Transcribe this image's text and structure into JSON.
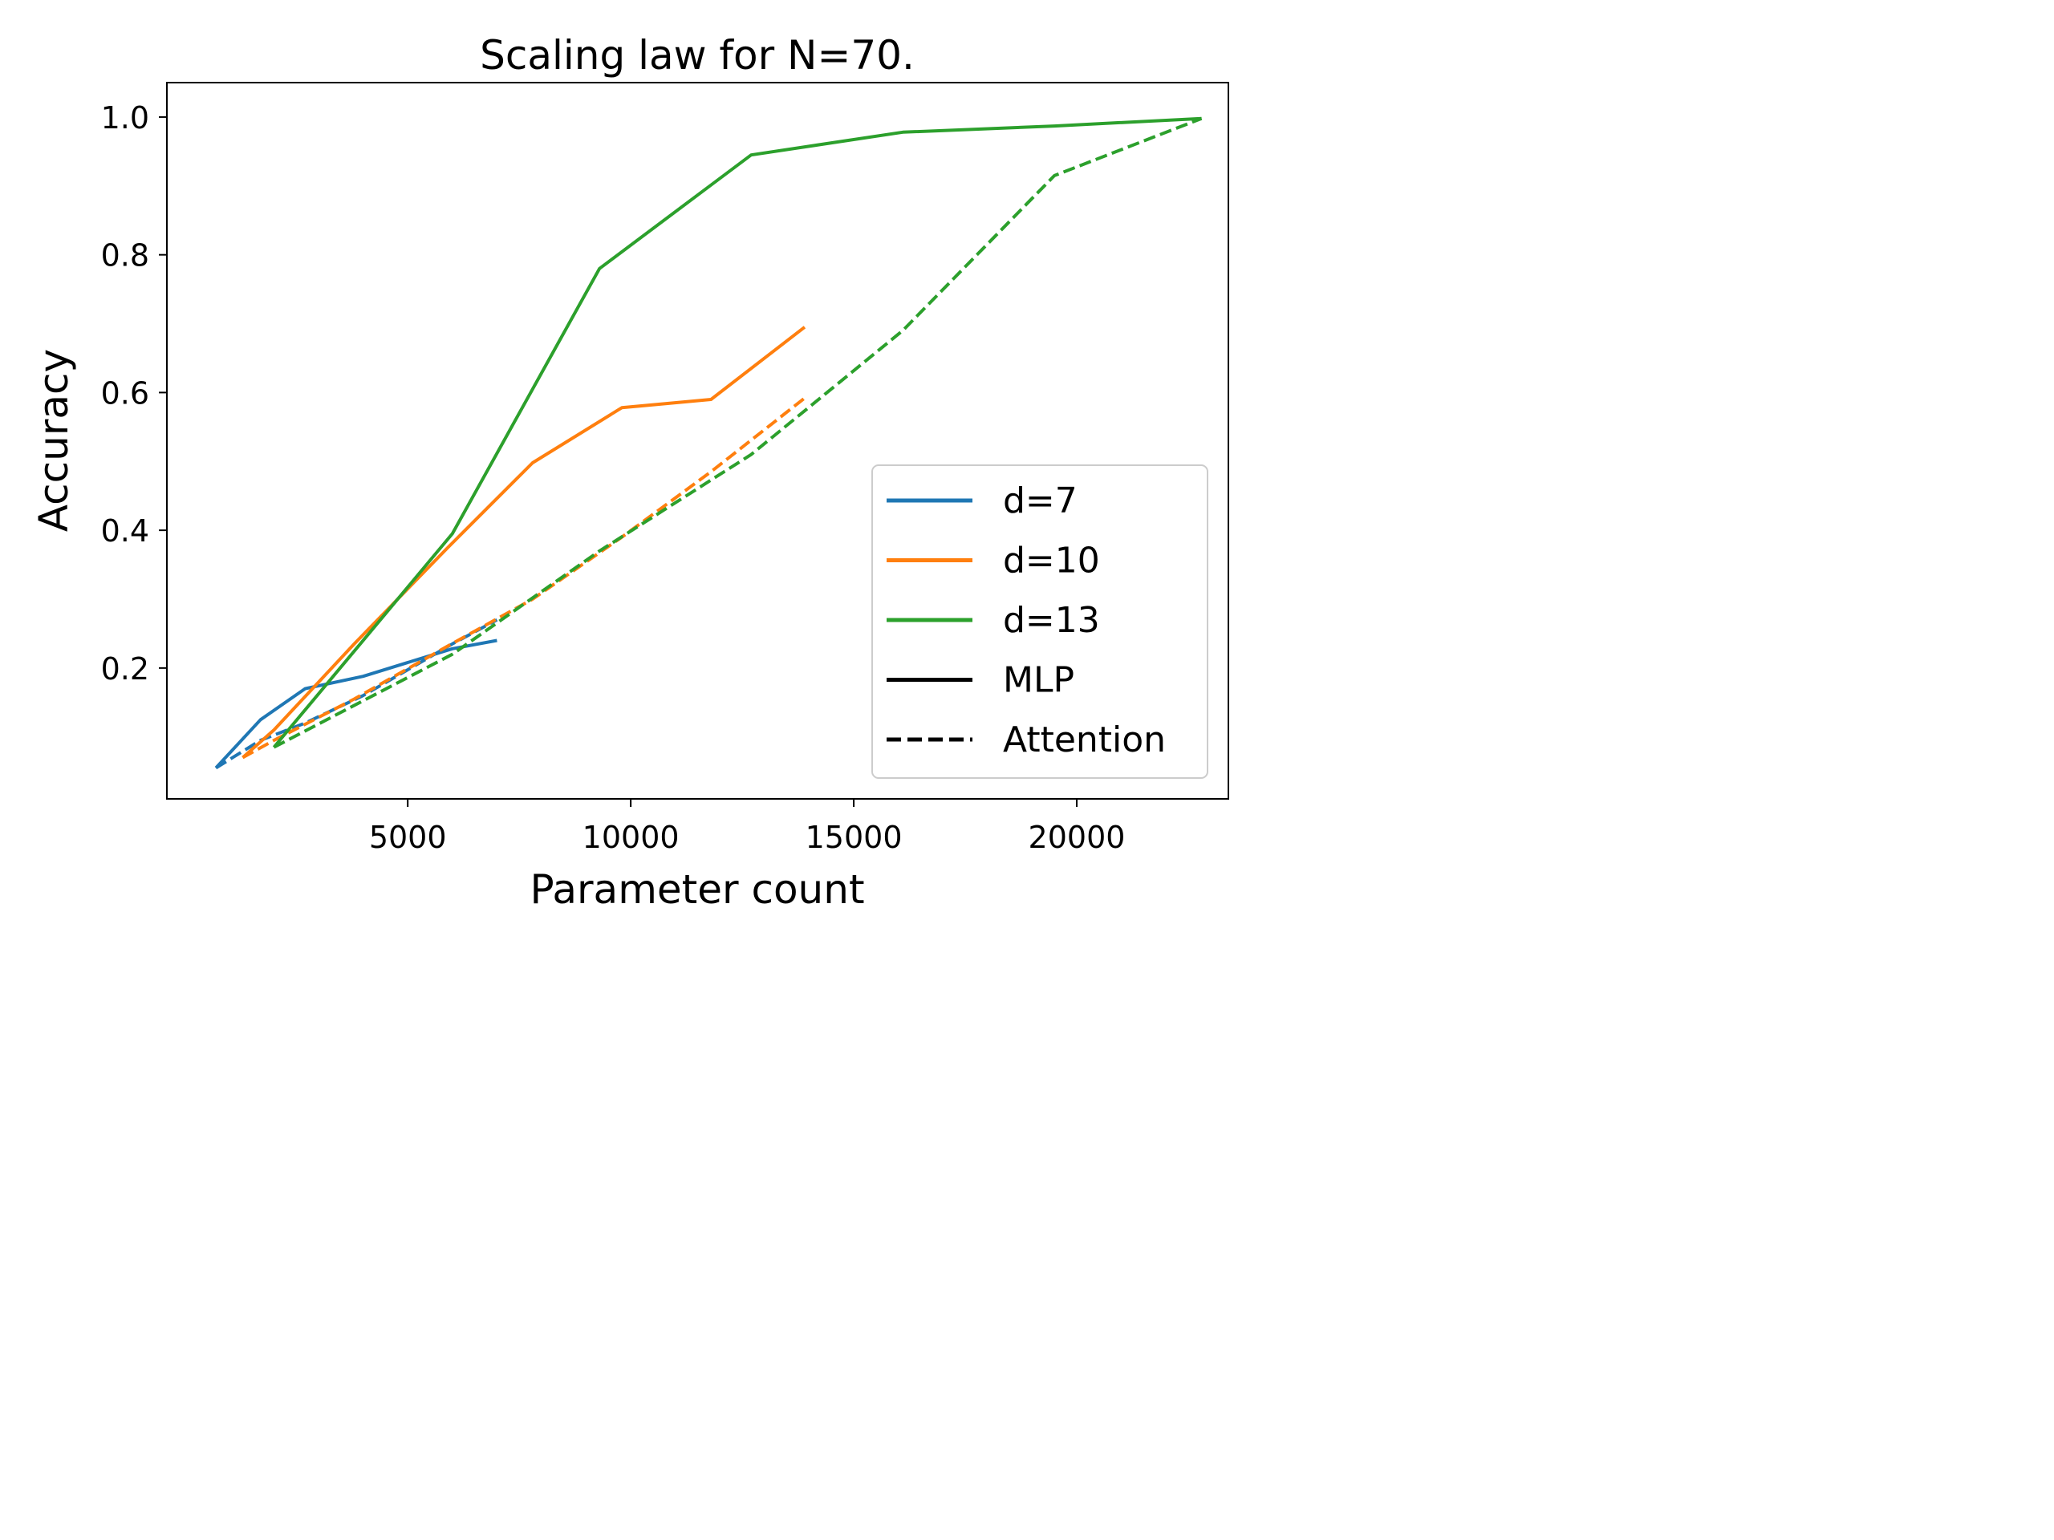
{
  "chart_data": {
    "type": "line",
    "title": "Scaling law for N=70.",
    "xlabel": "Parameter count",
    "ylabel": "Accuracy",
    "xlim": [
      -400,
      23400
    ],
    "ylim": [
      0.01,
      1.05
    ],
    "xticks": [
      5000,
      10000,
      15000,
      20000
    ],
    "yticks": [
      0.2,
      0.4,
      0.6,
      0.8,
      1.0
    ],
    "xtick_labels": [
      "5000",
      "10000",
      "15000",
      "20000"
    ],
    "ytick_labels": [
      "0.2",
      "0.4",
      "0.6",
      "0.8",
      "1.0"
    ],
    "grid": false,
    "legend_position": "lower-right",
    "legend": [
      {
        "label": "d=7",
        "color": "#1f77b4",
        "dash": "solid"
      },
      {
        "label": "d=10",
        "color": "#ff7f0e",
        "dash": "solid"
      },
      {
        "label": "d=13",
        "color": "#2ca02c",
        "dash": "solid"
      },
      {
        "label": "MLP",
        "color": "#000000",
        "dash": "solid"
      },
      {
        "label": "Attention",
        "color": "#000000",
        "dash": "dashed"
      }
    ],
    "series": [
      {
        "d": "d=7",
        "kind": "MLP",
        "color": "#1f77b4",
        "dash": "solid",
        "x": [
          700,
          1700,
          2700,
          4000,
          6000,
          7000
        ],
        "y": [
          0.055,
          0.125,
          0.17,
          0.188,
          0.228,
          0.24
        ]
      },
      {
        "d": "d=7",
        "kind": "Attention",
        "color": "#1f77b4",
        "dash": "dashed",
        "x": [
          700,
          1700,
          2700,
          4000,
          6000,
          7000
        ],
        "y": [
          0.055,
          0.095,
          0.12,
          0.16,
          0.235,
          0.27
        ]
      },
      {
        "d": "d=10",
        "kind": "MLP",
        "color": "#ff7f0e",
        "dash": "solid",
        "x": [
          1300,
          2000,
          3800,
          5900,
          7800,
          9800,
          11800,
          13900
        ],
        "y": [
          0.07,
          0.11,
          0.235,
          0.375,
          0.498,
          0.578,
          0.59,
          0.695
        ]
      },
      {
        "d": "d=10",
        "kind": "Attention",
        "color": "#ff7f0e",
        "dash": "dashed",
        "x": [
          1300,
          2000,
          3800,
          5900,
          7800,
          9800,
          11800,
          13900
        ],
        "y": [
          0.07,
          0.095,
          0.155,
          0.232,
          0.3,
          0.39,
          0.485,
          0.592
        ]
      },
      {
        "d": "d=13",
        "kind": "MLP",
        "color": "#2ca02c",
        "dash": "solid",
        "x": [
          2000,
          6000,
          9300,
          12700,
          16100,
          19500,
          22800
        ],
        "y": [
          0.085,
          0.395,
          0.78,
          0.945,
          0.978,
          0.987,
          0.998
        ]
      },
      {
        "d": "d=13",
        "kind": "Attention",
        "color": "#2ca02c",
        "dash": "dashed",
        "x": [
          2000,
          6000,
          9300,
          12700,
          16100,
          19500,
          22800
        ],
        "y": [
          0.085,
          0.22,
          0.37,
          0.51,
          0.69,
          0.915,
          0.998
        ]
      }
    ]
  }
}
